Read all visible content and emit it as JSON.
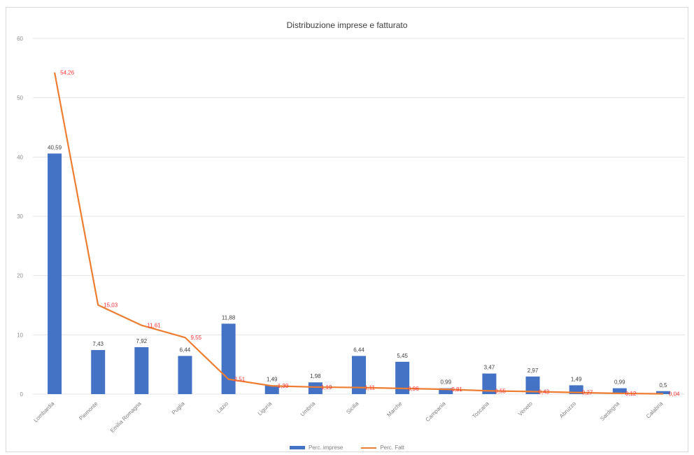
{
  "title": "Distribuzione imprese e fatturato",
  "colors": {
    "bar": "#4472c4",
    "line": "#ed7d31",
    "line_label": "#ff3333",
    "grid": "#e3e3e3"
  },
  "legend": {
    "bar_label": "Perc. imprese",
    "line_label": "Perc. Fatt"
  },
  "chart_data": {
    "type": "bar",
    "title": "Distribuzione imprese e fatturato",
    "categories": [
      "Lombardia",
      "Piemonte",
      "Emilia Romagna",
      "Puglia",
      "Lazio",
      "Liguria",
      "Umbria",
      "Sicilia",
      "Marche",
      "Campania",
      "Toscana",
      "Veneto",
      "Abruzzo",
      "Sardegna",
      "Calabria"
    ],
    "series": [
      {
        "name": "Perc. imprese",
        "type": "bar",
        "values": [
          40.59,
          7.43,
          7.92,
          6.44,
          11.88,
          1.49,
          1.98,
          6.44,
          5.45,
          0.99,
          3.47,
          2.97,
          1.49,
          0.99,
          0.5
        ],
        "labels": [
          "40,59",
          "7,43",
          "7,92",
          "6,44",
          "11,88",
          "1,49",
          "1,98",
          "6,44",
          "5,45",
          "0,99",
          "3,47",
          "2,97",
          "1,49",
          "0,99",
          "0,5"
        ]
      },
      {
        "name": "Perc. Fatt",
        "type": "line",
        "values": [
          54.26,
          15.03,
          11.61,
          9.55,
          2.51,
          1.39,
          1.19,
          1.11,
          0.96,
          0.81,
          0.55,
          0.43,
          0.27,
          0.12,
          0.04
        ],
        "labels": [
          "54,26",
          "15,03",
          "11,61",
          "9,55",
          "2,51",
          "1,39",
          "1,19",
          "1,11",
          "0,96",
          "0,81",
          "0,55",
          "0,43",
          "0,27",
          "0,12",
          "0,04"
        ]
      }
    ],
    "ylim": [
      0,
      60
    ],
    "yticks": [
      0,
      10,
      20,
      30,
      40,
      50,
      60
    ],
    "grid": true,
    "legend_position": "bottom"
  }
}
